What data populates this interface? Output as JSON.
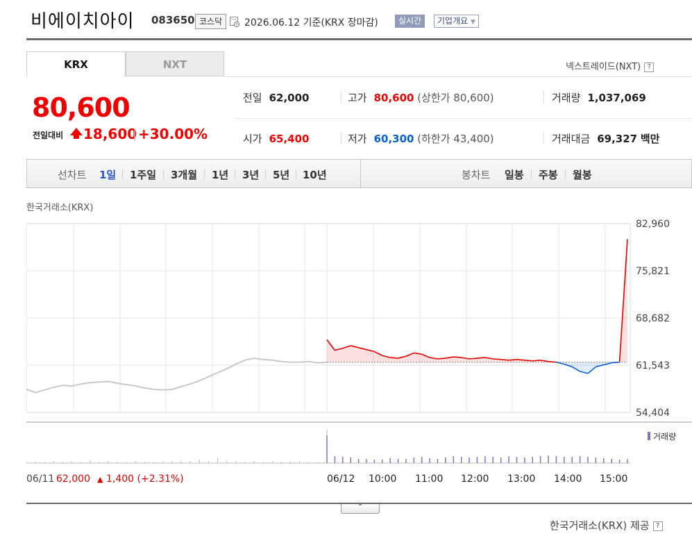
{
  "header": {
    "name": "비에이치아이",
    "code": "083650",
    "market_badge": "코스닥",
    "date_text": "2026.06.12  기준(KRX 장마감)",
    "realtime_label": "실시간",
    "company_button": "기업개요"
  },
  "tabs": {
    "krx": "KRX",
    "nxt": "NXT",
    "nxt_link": "넥스트레이드(NXT)"
  },
  "price": {
    "current": "80,600",
    "change_label": "전일대비",
    "change_amount": "18,600",
    "change_pct": "+30.00%"
  },
  "stats": {
    "prev_close": {
      "label": "전일",
      "value": "62,000"
    },
    "high": {
      "label": "고가",
      "value": "80,600",
      "note": "(상한가 80,600)"
    },
    "volume": {
      "label": "거래량",
      "value": "1,037,069"
    },
    "open": {
      "label": "시가",
      "value": "65,400"
    },
    "low": {
      "label": "저가",
      "value": "60,300",
      "note": "(하한가 43,400)"
    },
    "trade_value": {
      "label": "거래대금",
      "value": "69,327",
      "unit": "백만"
    }
  },
  "period_bar": {
    "line_chart_label": "선차트",
    "periods": [
      "1일",
      "1주일",
      "3개월",
      "1년",
      "3년",
      "5년",
      "10년"
    ],
    "selected_period": "1일",
    "candle_chart_label": "봉차트",
    "candles": [
      "일봉",
      "주봉",
      "월봉"
    ]
  },
  "chart": {
    "market_label": "한국거래소(KRX)",
    "volume_legend": "거래량",
    "prev_day_info": {
      "date": "06/11",
      "price": "62,000",
      "change": "1,400",
      "pct": "(+2.31%)"
    },
    "source": "한국거래소(KRX) 제공"
  },
  "colors": {
    "up": "#e00000",
    "down": "#0a5fd0",
    "volume": "#8a6fc1",
    "prev_line": "#c8c8c8"
  },
  "chart_data": {
    "type": "line",
    "y_ticks": [
      "82,960",
      "75,821",
      "68,682",
      "61,543",
      "54,404"
    ],
    "y_tick_values": [
      82960,
      75821,
      68682,
      61543,
      54404
    ],
    "x_ticks": [
      "06/12",
      "10:00",
      "11:00",
      "12:00",
      "13:00",
      "14:00",
      "15:00"
    ],
    "baseline": 62000,
    "grid": true,
    "series": [
      {
        "name": "06/11",
        "values": [
          57900,
          57400,
          57800,
          58200,
          58500,
          58400,
          58700,
          58900,
          59000,
          59100,
          58800,
          58600,
          58400,
          58100,
          57900,
          57800,
          57900,
          58300,
          58700,
          59200,
          59800,
          60400,
          61000,
          61700,
          62300,
          62600,
          62400,
          62300,
          62100,
          62000,
          62000,
          62100,
          61900,
          62000
        ]
      },
      {
        "name": "06/12",
        "values": [
          65400,
          63800,
          64100,
          64500,
          64200,
          63900,
          63600,
          63000,
          62700,
          62600,
          62900,
          63400,
          63200,
          62700,
          62500,
          62600,
          62800,
          62700,
          62500,
          62600,
          62700,
          62500,
          62400,
          62300,
          62400,
          62300,
          62200,
          62300,
          62100,
          62000,
          61700,
          61300,
          60600,
          60300,
          61300,
          61600,
          61900,
          62000,
          80600
        ]
      }
    ],
    "volume_prev": [
      3,
      2,
      2,
      3,
      2,
      3,
      2,
      4,
      2,
      3,
      2,
      2,
      3,
      2,
      2,
      3,
      3,
      4,
      3,
      5,
      3,
      8,
      4,
      3,
      2,
      3,
      2,
      3,
      2,
      2,
      3,
      2,
      2,
      3
    ],
    "volume_today": [
      40,
      10,
      9,
      8,
      6,
      6,
      5,
      5,
      7,
      6,
      6,
      8,
      9,
      7,
      6,
      8,
      10,
      9,
      8,
      9,
      10,
      9,
      8,
      10,
      9,
      8,
      9,
      10,
      11,
      10,
      9,
      9,
      10,
      9,
      8,
      7,
      6,
      5,
      6
    ]
  }
}
